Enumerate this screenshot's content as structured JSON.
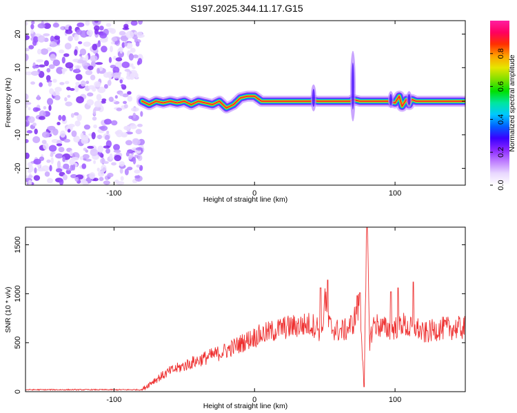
{
  "title": "S197.2025.344.11.17.G15",
  "chart_data": [
    {
      "type": "heatmap",
      "title": "S197.2025.344.11.17.G15",
      "xlabel": "Height of straight line (km)",
      "ylabel": "Frequency (Hz)",
      "xlim": [
        -163,
        150
      ],
      "ylim": [
        -25,
        24
      ],
      "xticks": [
        -100,
        0,
        100
      ],
      "yticks": [
        -20,
        -10,
        0,
        10,
        20
      ],
      "noise_region_x": [
        -163,
        -80
      ],
      "colorbar": {
        "label": "Normalized spectral amplitude",
        "range": [
          0,
          1
        ],
        "ticks": [
          0.0,
          0.2,
          0.4,
          0.6,
          0.8
        ],
        "tick_labels": [
          "0.0",
          "0.2",
          "0.4",
          "0.6",
          "0.8"
        ],
        "colors": [
          "#ffffff",
          "#e9d8ff",
          "#bf7fff",
          "#8a28ff",
          "#3a00ff",
          "#0060ff",
          "#00c8ff",
          "#00e6a0",
          "#00e000",
          "#80e000",
          "#e6e600",
          "#ffa000",
          "#ff3000",
          "#ff0060",
          "#ff1fa0"
        ]
      },
      "trace": {
        "x": [
          -80,
          -75,
          -70,
          -65,
          -60,
          -55,
          -50,
          -45,
          -40,
          -35,
          -30,
          -25,
          -20,
          -15,
          -10,
          -5,
          0,
          5,
          10,
          20,
          30,
          35,
          40,
          42,
          45,
          50,
          60,
          68,
          70,
          75,
          80,
          90,
          95,
          100,
          103,
          105,
          108,
          110,
          112,
          115,
          130,
          150
        ],
        "y": [
          0,
          -1,
          0,
          -0.5,
          0,
          -0.5,
          0,
          -1,
          0,
          -0.5,
          -1,
          0,
          -2,
          -1,
          1,
          1.5,
          1.5,
          0,
          0,
          0,
          0,
          0,
          0,
          0.2,
          0,
          0,
          0,
          0,
          0.5,
          0,
          0,
          0,
          0,
          -0.5,
          1.5,
          -1.5,
          0.5,
          -1,
          0.5,
          0,
          0,
          0
        ]
      },
      "spikes": [
        {
          "x": 42,
          "y_range": [
            -3,
            5
          ]
        },
        {
          "x": 70,
          "y_range": [
            -6,
            15
          ]
        },
        {
          "x": 97,
          "y_range": [
            -2,
            3
          ]
        },
        {
          "x": 110,
          "y_range": [
            -2,
            3
          ]
        }
      ]
    },
    {
      "type": "line",
      "xlabel": "Height of straight line (km)",
      "ylabel": "SNR (10 * v/v)",
      "xlim": [
        -163,
        150
      ],
      "ylim": [
        0,
        1680
      ],
      "xticks": [
        -100,
        0,
        100
      ],
      "yticks": [
        0,
        500,
        1000,
        1500
      ],
      "color": "#ee3030",
      "envelope": {
        "x": [
          -163,
          -80,
          -72,
          -60,
          -40,
          -20,
          0,
          20,
          40,
          45,
          48,
          50,
          52,
          55,
          60,
          65,
          70,
          75,
          78,
          80,
          82,
          85,
          90,
          95,
          100,
          105,
          110,
          115,
          120,
          130,
          140,
          150
        ],
        "y": [
          20,
          20,
          110,
          210,
          320,
          420,
          560,
          650,
          690,
          660,
          550,
          1000,
          700,
          650,
          620,
          630,
          700,
          900,
          60,
          1680,
          520,
          700,
          660,
          640,
          650,
          700,
          640,
          660,
          590,
          640,
          650,
          650
        ]
      },
      "peaks": [
        {
          "x": 47,
          "y": 1060
        },
        {
          "x": 52,
          "y": 1140
        },
        {
          "x": 73,
          "y": 980
        },
        {
          "x": 75,
          "y": 1010
        },
        {
          "x": 78,
          "y": 50
        },
        {
          "x": 80,
          "y": 1680
        },
        {
          "x": 97,
          "y": 1020
        },
        {
          "x": 102,
          "y": 1060
        },
        {
          "x": 113,
          "y": 1120
        }
      ]
    }
  ]
}
